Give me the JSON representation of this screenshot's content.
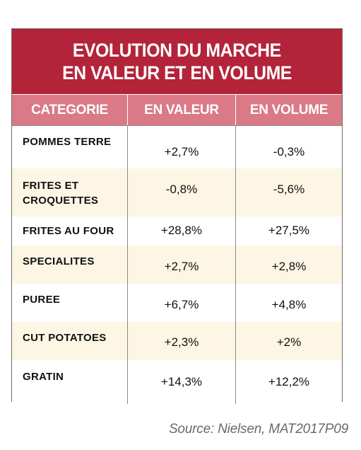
{
  "table": {
    "title_line1": "EVOLUTION DU MARCHE",
    "title_line2": "EN VALEUR ET EN VOLUME",
    "headers": [
      "CATEGORIE",
      "EN VALEUR",
      "EN VOLUME"
    ],
    "rows": [
      {
        "category": [
          "POMMES TERRE"
        ],
        "valeur": "+2,7%",
        "volume": "-0,3%"
      },
      {
        "category": [
          "FRITES ET",
          "CROQUETTES"
        ],
        "valeur": "-0,8%",
        "volume": "-5,6%"
      },
      {
        "category": [
          "FRITES AU FOUR"
        ],
        "valeur": "+28,8%",
        "volume": "+27,5%"
      },
      {
        "category": [
          "SPECIALITES"
        ],
        "valeur": "+2,7%",
        "volume": "+2,8%"
      },
      {
        "category": [
          "PUREE"
        ],
        "valeur": "+6,7%",
        "volume": "+4,8%"
      },
      {
        "category": [
          "CUT POTATOES"
        ],
        "valeur": "+2,3%",
        "volume": "+2%"
      },
      {
        "category": [
          "GRATIN"
        ],
        "valeur": "+14,3%",
        "volume": "+12,2%"
      }
    ]
  },
  "source": "Source: Nielsen, MAT2017P09",
  "colors": {
    "title_bg": "#b3243a",
    "header_bg": "#d97a86",
    "stripe_bg": "#fdf6e4"
  }
}
